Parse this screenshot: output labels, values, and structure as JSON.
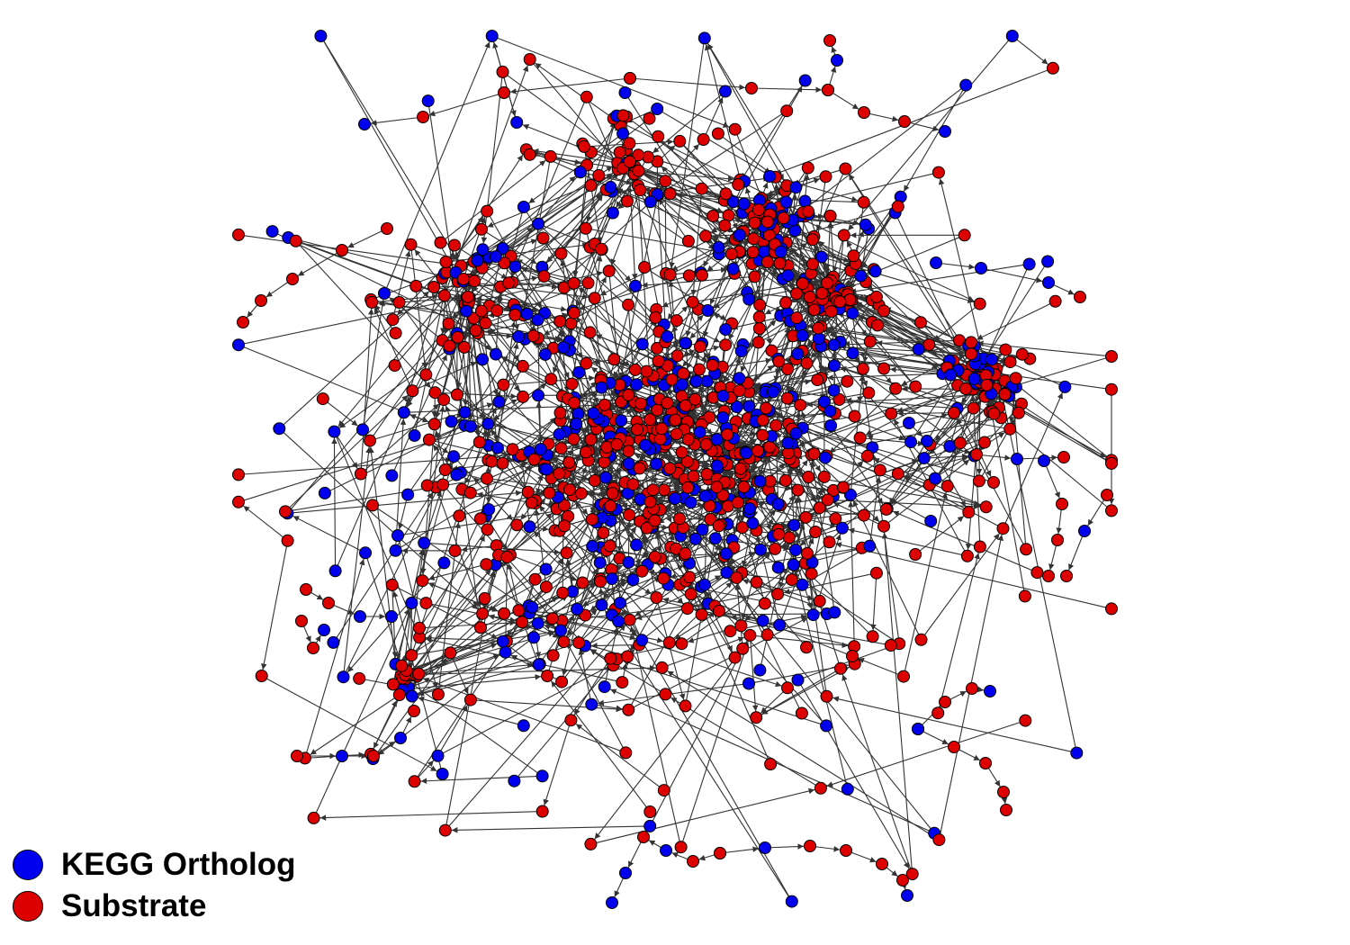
{
  "legend": {
    "items": [
      {
        "label": "KEGG Ortholog",
        "color": "#0000ee"
      },
      {
        "label": "Substrate",
        "color": "#dd0000"
      }
    ]
  },
  "colors": {
    "ortholog": "#0000ee",
    "substrate": "#dd0000",
    "edge": "#333333",
    "node_outline": "#000000"
  }
}
